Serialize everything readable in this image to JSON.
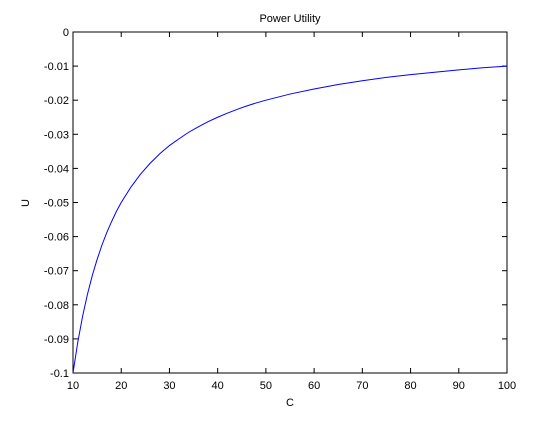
{
  "chart_data": {
    "type": "line",
    "title": "Power Utility",
    "xlabel": "C",
    "ylabel": "U",
    "xlim": [
      10,
      100
    ],
    "ylim": [
      -0.1,
      0
    ],
    "xticks": [
      10,
      20,
      30,
      40,
      50,
      60,
      70,
      80,
      90,
      100
    ],
    "yticks": [
      0,
      -0.01,
      -0.02,
      -0.03,
      -0.04,
      -0.05,
      -0.06,
      -0.07,
      -0.08,
      -0.09,
      -0.1
    ],
    "ytick_labels": [
      "0",
      "-0.01",
      "-0.02",
      "-0.03",
      "-0.04",
      "-0.05",
      "-0.06",
      "-0.07",
      "-0.08",
      "-0.09",
      "-0.1"
    ],
    "grid": false,
    "series": [
      {
        "color": "#0000ff",
        "x": [
          10,
          11,
          12,
          13,
          14,
          15,
          16,
          17,
          18,
          19,
          20,
          22,
          24,
          26,
          28,
          30,
          32,
          34,
          36,
          38,
          40,
          42,
          44,
          46,
          48,
          50,
          55,
          60,
          65,
          70,
          75,
          80,
          85,
          90,
          95,
          100
        ],
        "y": [
          -0.1,
          -0.0909,
          -0.0833,
          -0.0769,
          -0.0714,
          -0.0667,
          -0.0625,
          -0.0588,
          -0.0556,
          -0.0526,
          -0.05,
          -0.0455,
          -0.0417,
          -0.0385,
          -0.0357,
          -0.0333,
          -0.0313,
          -0.0294,
          -0.0278,
          -0.0263,
          -0.025,
          -0.0238,
          -0.0227,
          -0.0217,
          -0.0208,
          -0.02,
          -0.0182,
          -0.0167,
          -0.0154,
          -0.0143,
          -0.0133,
          -0.0125,
          -0.0118,
          -0.0111,
          -0.0105,
          -0.01
        ]
      }
    ]
  }
}
